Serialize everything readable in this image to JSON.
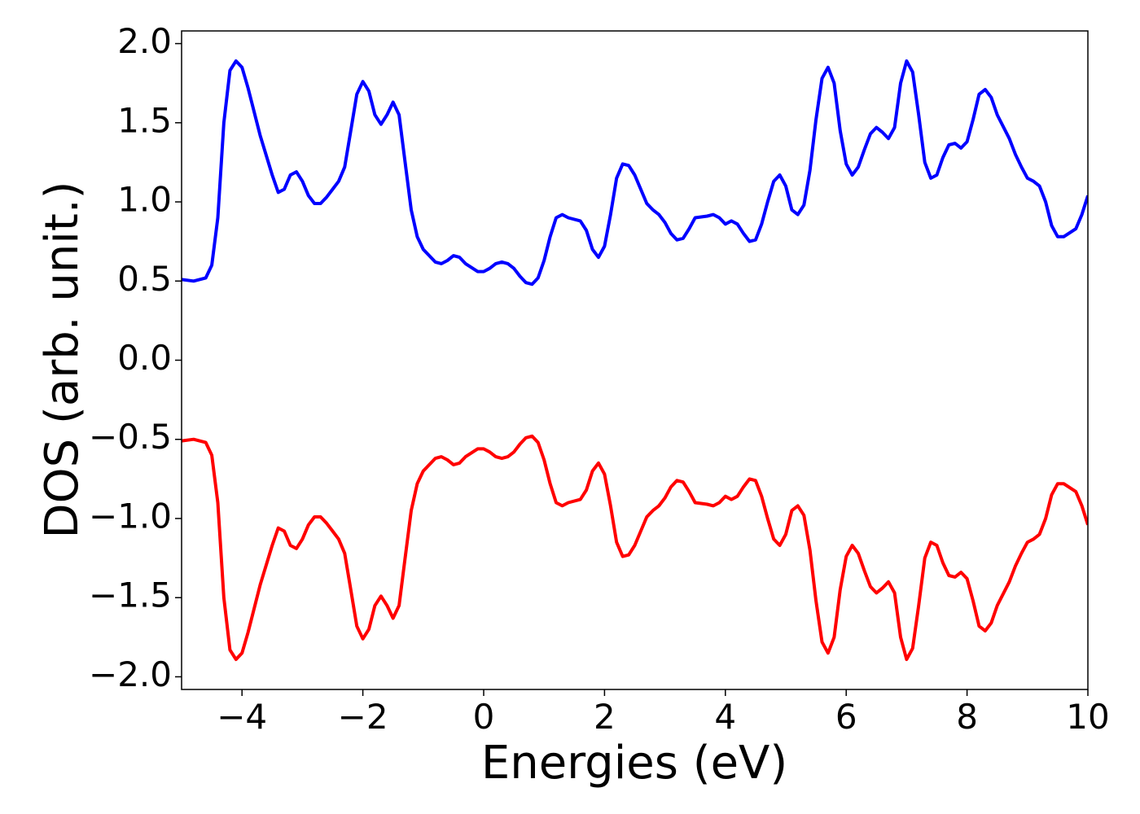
{
  "chart_data": {
    "type": "line",
    "xlabel": "Energies (eV)",
    "ylabel": "DOS (arb. unit.)",
    "xlim": [
      -5,
      10
    ],
    "ylim": [
      -2.08,
      2.08
    ],
    "xticks": [
      {
        "value": -4,
        "label": "−4"
      },
      {
        "value": -2,
        "label": "−2"
      },
      0,
      2,
      4,
      6,
      8,
      10
    ],
    "yticks": [
      {
        "value": -2,
        "label": "−2.0"
      },
      {
        "value": -1.5,
        "label": "−1.5"
      },
      {
        "value": -1,
        "label": "−1.0"
      },
      {
        "value": -0.5,
        "label": "−0.5"
      },
      {
        "value": 0,
        "label": "0.0"
      },
      {
        "value": 0.5,
        "label": "0.5"
      },
      {
        "value": 1,
        "label": "1.0"
      },
      {
        "value": 1.5,
        "label": "1.5"
      },
      {
        "value": 2,
        "label": "2.0"
      }
    ],
    "x": [
      -5,
      -4.8,
      -4.6,
      -4.5,
      -4.4,
      -4.3,
      -4.2,
      -4.1,
      -4.0,
      -3.9,
      -3.7,
      -3.5,
      -3.4,
      -3.3,
      -3.2,
      -3.1,
      -3.0,
      -2.9,
      -2.8,
      -2.7,
      -2.6,
      -2.5,
      -2.4,
      -2.3,
      -2.2,
      -2.1,
      -2.0,
      -1.9,
      -1.8,
      -1.7,
      -1.6,
      -1.5,
      -1.4,
      -1.3,
      -1.2,
      -1.1,
      -1.0,
      -0.8,
      -0.7,
      -0.6,
      -0.5,
      -0.4,
      -0.3,
      -0.1,
      0,
      0.1,
      0.2,
      0.3,
      0.4,
      0.5,
      0.6,
      0.7,
      0.8,
      0.9,
      1.0,
      1.1,
      1.2,
      1.3,
      1.4,
      1.6,
      1.7,
      1.8,
      1.9,
      2.0,
      2.1,
      2.2,
      2.3,
      2.4,
      2.5,
      2.6,
      2.7,
      2.8,
      2.9,
      3.0,
      3.1,
      3.2,
      3.3,
      3.4,
      3.5,
      3.7,
      3.8,
      3.9,
      4.0,
      4.1,
      4.2,
      4.3,
      4.4,
      4.5,
      4.6,
      4.7,
      4.8,
      4.9,
      5.0,
      5.1,
      5.2,
      5.3,
      5.4,
      5.5,
      5.6,
      5.7,
      5.8,
      5.9,
      6.0,
      6.1,
      6.2,
      6.3,
      6.4,
      6.5,
      6.6,
      6.7,
      6.8,
      6.9,
      7.0,
      7.1,
      7.2,
      7.3,
      7.4,
      7.5,
      7.6,
      7.7,
      7.8,
      7.9,
      8.0,
      8.1,
      8.2,
      8.3,
      8.4,
      8.5,
      8.7,
      8.8,
      8.9,
      9.0,
      9.1,
      9.2,
      9.3,
      9.4,
      9.5,
      9.6,
      9.8,
      9.9,
      10.0
    ],
    "series": [
      {
        "color": "#0000ff",
        "values": [
          0.51,
          0.5,
          0.52,
          0.6,
          0.9,
          1.5,
          1.83,
          1.89,
          1.85,
          1.72,
          1.42,
          1.17,
          1.06,
          1.08,
          1.17,
          1.19,
          1.13,
          1.04,
          0.99,
          0.99,
          1.03,
          1.08,
          1.13,
          1.22,
          1.45,
          1.68,
          1.76,
          1.7,
          1.55,
          1.49,
          1.55,
          1.63,
          1.55,
          1.25,
          0.95,
          0.78,
          0.7,
          0.62,
          0.61,
          0.63,
          0.66,
          0.65,
          0.61,
          0.56,
          0.56,
          0.58,
          0.61,
          0.62,
          0.61,
          0.58,
          0.53,
          0.49,
          0.48,
          0.52,
          0.63,
          0.78,
          0.9,
          0.92,
          0.9,
          0.88,
          0.82,
          0.7,
          0.65,
          0.72,
          0.92,
          1.15,
          1.24,
          1.23,
          1.17,
          1.08,
          0.99,
          0.95,
          0.92,
          0.87,
          0.8,
          0.76,
          0.77,
          0.83,
          0.9,
          0.91,
          0.92,
          0.9,
          0.86,
          0.88,
          0.86,
          0.8,
          0.75,
          0.76,
          0.86,
          1.0,
          1.13,
          1.17,
          1.1,
          0.95,
          0.92,
          0.98,
          1.2,
          1.52,
          1.78,
          1.85,
          1.75,
          1.45,
          1.24,
          1.17,
          1.22,
          1.33,
          1.43,
          1.47,
          1.44,
          1.4,
          1.47,
          1.75,
          1.89,
          1.82,
          1.55,
          1.25,
          1.15,
          1.17,
          1.28,
          1.36,
          1.37,
          1.34,
          1.38,
          1.52,
          1.68,
          1.71,
          1.66,
          1.55,
          1.4,
          1.3,
          1.22,
          1.15,
          1.13,
          1.1,
          1.0,
          0.85,
          0.78,
          0.78,
          0.83,
          0.92,
          1.04
        ]
      },
      {
        "color": "#ff0000",
        "values": [
          -0.51,
          -0.5,
          -0.52,
          -0.6,
          -0.9,
          -1.5,
          -1.83,
          -1.89,
          -1.85,
          -1.72,
          -1.42,
          -1.17,
          -1.06,
          -1.08,
          -1.17,
          -1.19,
          -1.13,
          -1.04,
          -0.99,
          -0.99,
          -1.03,
          -1.08,
          -1.13,
          -1.22,
          -1.45,
          -1.68,
          -1.76,
          -1.7,
          -1.55,
          -1.49,
          -1.55,
          -1.63,
          -1.55,
          -1.25,
          -0.95,
          -0.78,
          -0.7,
          -0.62,
          -0.61,
          -0.63,
          -0.66,
          -0.65,
          -0.61,
          -0.56,
          -0.56,
          -0.58,
          -0.61,
          -0.62,
          -0.61,
          -0.58,
          -0.53,
          -0.49,
          -0.48,
          -0.52,
          -0.63,
          -0.78,
          -0.9,
          -0.92,
          -0.9,
          -0.88,
          -0.82,
          -0.7,
          -0.65,
          -0.72,
          -0.92,
          -1.15,
          -1.24,
          -1.23,
          -1.17,
          -1.08,
          -0.99,
          -0.95,
          -0.92,
          -0.87,
          -0.8,
          -0.76,
          -0.77,
          -0.83,
          -0.9,
          -0.91,
          -0.92,
          -0.9,
          -0.86,
          -0.88,
          -0.86,
          -0.8,
          -0.75,
          -0.76,
          -0.86,
          -1.0,
          -1.13,
          -1.17,
          -1.1,
          -0.95,
          -0.92,
          -0.98,
          -1.2,
          -1.52,
          -1.78,
          -1.85,
          -1.75,
          -1.45,
          -1.24,
          -1.17,
          -1.22,
          -1.33,
          -1.43,
          -1.47,
          -1.44,
          -1.4,
          -1.47,
          -1.75,
          -1.89,
          -1.82,
          -1.55,
          -1.25,
          -1.15,
          -1.17,
          -1.28,
          -1.36,
          -1.37,
          -1.34,
          -1.38,
          -1.52,
          -1.68,
          -1.71,
          -1.66,
          -1.55,
          -1.4,
          -1.3,
          -1.22,
          -1.15,
          -1.13,
          -1.1,
          -1.0,
          -0.85,
          -0.78,
          -0.78,
          -0.83,
          -0.92,
          -1.04
        ]
      }
    ]
  }
}
